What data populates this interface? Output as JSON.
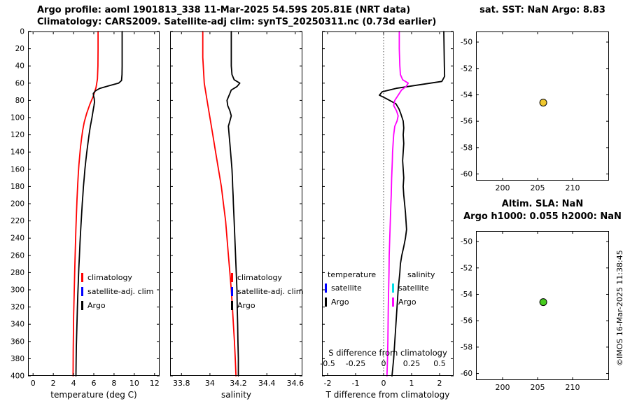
{
  "header": {
    "line1": "Argo profile: aoml 1901813_338 11-Mar-2025 54.59S 205.81E (NRT data)",
    "line2": "Climatology: CARS2009. Satellite-adj clim: synTS_20250311.nc (0.73d earlier)"
  },
  "watermark": "©IMOS 16-Mar-2025 11:38:45",
  "chart_data": [
    {
      "id": "temperature-profile",
      "type": "line",
      "xlabel": "temperature (deg C)",
      "xlim": [
        -0.5,
        12.5
      ],
      "xticks": [
        0,
        2,
        4,
        6,
        8,
        10,
        12
      ],
      "ylim": [
        0,
        400
      ],
      "yticks": [
        0,
        20,
        40,
        60,
        80,
        100,
        120,
        140,
        160,
        180,
        200,
        220,
        240,
        260,
        280,
        300,
        320,
        340,
        360,
        380,
        400
      ],
      "ytick_labels": true,
      "legend": [
        {
          "label": "climatology",
          "color": "#ff0000"
        },
        {
          "label": "satellite-adj. clim",
          "color": "#0000ff"
        },
        {
          "label": "Argo",
          "color": "#000000"
        }
      ],
      "series": [
        {
          "name": "climatology",
          "color": "#ff0000",
          "points": [
            [
              0,
              6.42
            ],
            [
              20,
              6.42
            ],
            [
              40,
              6.41
            ],
            [
              55,
              6.36
            ],
            [
              65,
              6.22
            ],
            [
              75,
              5.95
            ],
            [
              85,
              5.6
            ],
            [
              95,
              5.3
            ],
            [
              105,
              5.06
            ],
            [
              115,
              4.9
            ],
            [
              125,
              4.78
            ],
            [
              135,
              4.68
            ],
            [
              145,
              4.6
            ],
            [
              155,
              4.53
            ],
            [
              165,
              4.47
            ],
            [
              175,
              4.42
            ],
            [
              185,
              4.38
            ],
            [
              195,
              4.34
            ],
            [
              210,
              4.29
            ],
            [
              230,
              4.23
            ],
            [
              250,
              4.18
            ],
            [
              270,
              4.13
            ],
            [
              290,
              4.09
            ],
            [
              310,
              4.05
            ],
            [
              330,
              4.01
            ],
            [
              350,
              3.99
            ],
            [
              370,
              3.97
            ],
            [
              400,
              3.95
            ]
          ]
        },
        {
          "name": "Argo",
          "color": "#000000",
          "points": [
            [
              0,
              8.8
            ],
            [
              20,
              8.8
            ],
            [
              40,
              8.8
            ],
            [
              50,
              8.79
            ],
            [
              57,
              8.74
            ],
            [
              60,
              8.45
            ],
            [
              63,
              7.5
            ],
            [
              66,
              6.6
            ],
            [
              69,
              6.15
            ],
            [
              72,
              5.95
            ],
            [
              75,
              5.98
            ],
            [
              78,
              6.04
            ],
            [
              82,
              6.07
            ],
            [
              86,
              6.02
            ],
            [
              90,
              5.96
            ],
            [
              95,
              5.89
            ],
            [
              100,
              5.82
            ],
            [
              110,
              5.66
            ],
            [
              120,
              5.53
            ],
            [
              130,
              5.42
            ],
            [
              140,
              5.31
            ],
            [
              150,
              5.21
            ],
            [
              160,
              5.12
            ],
            [
              170,
              5.05
            ],
            [
              180,
              4.98
            ],
            [
              190,
              4.92
            ],
            [
              200,
              4.86
            ],
            [
              215,
              4.78
            ],
            [
              230,
              4.71
            ],
            [
              245,
              4.64
            ],
            [
              260,
              4.58
            ],
            [
              275,
              4.52
            ],
            [
              290,
              4.47
            ],
            [
              305,
              4.42
            ],
            [
              320,
              4.38
            ],
            [
              335,
              4.35
            ],
            [
              350,
              4.31
            ],
            [
              365,
              4.28
            ],
            [
              380,
              4.26
            ],
            [
              400,
              4.24
            ]
          ]
        }
      ]
    },
    {
      "id": "salinity-profile",
      "type": "line",
      "xlabel": "salinity",
      "xlim": [
        33.72,
        34.65
      ],
      "xticks": [
        33.8,
        34,
        34.2,
        34.4,
        34.6
      ],
      "ylim": [
        0,
        400
      ],
      "yticks": [
        0,
        20,
        40,
        60,
        80,
        100,
        120,
        140,
        160,
        180,
        200,
        220,
        240,
        260,
        280,
        300,
        320,
        340,
        360,
        380,
        400
      ],
      "ytick_labels": false,
      "legend": [
        {
          "label": "climatology",
          "color": "#ff0000"
        },
        {
          "label": "satellite-adj. clim",
          "color": "#0000ff"
        },
        {
          "label": "Argo",
          "color": "#000000"
        }
      ],
      "series": [
        {
          "name": "climatology",
          "color": "#ff0000",
          "points": [
            [
              0,
              33.95
            ],
            [
              30,
              33.95
            ],
            [
              60,
              33.96
            ],
            [
              80,
              33.98
            ],
            [
              100,
              34.0
            ],
            [
              120,
              34.02
            ],
            [
              140,
              34.04
            ],
            [
              160,
              34.06
            ],
            [
              180,
              34.08
            ],
            [
              200,
              34.095
            ],
            [
              220,
              34.11
            ],
            [
              240,
              34.12
            ],
            [
              260,
              34.13
            ],
            [
              280,
              34.14
            ],
            [
              300,
              34.15
            ],
            [
              320,
              34.158
            ],
            [
              340,
              34.165
            ],
            [
              360,
              34.172
            ],
            [
              380,
              34.178
            ],
            [
              400,
              34.183
            ]
          ]
        },
        {
          "name": "Argo",
          "color": "#000000",
          "points": [
            [
              0,
              34.15
            ],
            [
              20,
              34.15
            ],
            [
              40,
              34.15
            ],
            [
              50,
              34.155
            ],
            [
              56,
              34.17
            ],
            [
              60,
              34.21
            ],
            [
              64,
              34.19
            ],
            [
              68,
              34.15
            ],
            [
              72,
              34.14
            ],
            [
              76,
              34.13
            ],
            [
              80,
              34.12
            ],
            [
              86,
              34.125
            ],
            [
              92,
              34.14
            ],
            [
              98,
              34.15
            ],
            [
              104,
              34.14
            ],
            [
              110,
              34.13
            ],
            [
              120,
              34.135
            ],
            [
              130,
              34.14
            ],
            [
              140,
              34.145
            ],
            [
              150,
              34.15
            ],
            [
              160,
              34.155
            ],
            [
              170,
              34.158
            ],
            [
              180,
              34.16
            ],
            [
              190,
              34.163
            ],
            [
              200,
              34.165
            ],
            [
              220,
              34.17
            ],
            [
              240,
              34.175
            ],
            [
              260,
              34.18
            ],
            [
              280,
              34.185
            ],
            [
              300,
              34.19
            ],
            [
              320,
              34.192
            ],
            [
              340,
              34.195
            ],
            [
              360,
              34.197
            ],
            [
              380,
              34.2
            ],
            [
              400,
              34.2
            ]
          ]
        }
      ]
    },
    {
      "id": "difference-profile",
      "type": "line",
      "xlabel": "T difference from climatology",
      "xlim": [
        -2.2,
        2.5
      ],
      "xticks": [
        -2,
        -1,
        0,
        1,
        2
      ],
      "ylim": [
        0,
        400
      ],
      "yticks": [
        0,
        20,
        40,
        60,
        80,
        100,
        120,
        140,
        160,
        180,
        200,
        220,
        240,
        260,
        280,
        300,
        320,
        340,
        360,
        380,
        400
      ],
      "ytick_labels": false,
      "zero_line": true,
      "s_axis": {
        "label": "S difference from climatology",
        "ticks": [
          -0.5,
          -0.25,
          0,
          0.25,
          0.5
        ],
        "scale": 4
      },
      "legend_columns": [
        {
          "header": "temperature",
          "entries": [
            {
              "label": "satellite",
              "color": "#0000ff"
            },
            {
              "label": "Argo",
              "color": "#000000"
            }
          ]
        },
        {
          "header": "salinity",
          "entries": [
            {
              "label": "satellite",
              "color": "#00dfe8"
            },
            {
              "label": "Argo",
              "color": "#ff00ff"
            }
          ]
        }
      ],
      "series": [
        {
          "name": "T-diff-Argo-minus-climatology",
          "color": "#000000",
          "points": [
            [
              0,
              2.15
            ],
            [
              20,
              2.16
            ],
            [
              40,
              2.17
            ],
            [
              52,
              2.18
            ],
            [
              58,
              2.08
            ],
            [
              62,
              1.25
            ],
            [
              66,
              0.45
            ],
            [
              70,
              -0.05
            ],
            [
              74,
              -0.15
            ],
            [
              78,
              0.1
            ],
            [
              84,
              0.44
            ],
            [
              90,
              0.55
            ],
            [
              96,
              0.62
            ],
            [
              104,
              0.7
            ],
            [
              112,
              0.72
            ],
            [
              120,
              0.7
            ],
            [
              130,
              0.72
            ],
            [
              140,
              0.7
            ],
            [
              150,
              0.68
            ],
            [
              160,
              0.7
            ],
            [
              170,
              0.72
            ],
            [
              180,
              0.7
            ],
            [
              190,
              0.72
            ],
            [
              200,
              0.75
            ],
            [
              210,
              0.78
            ],
            [
              220,
              0.8
            ],
            [
              230,
              0.82
            ],
            [
              240,
              0.78
            ],
            [
              250,
              0.72
            ],
            [
              260,
              0.65
            ],
            [
              270,
              0.6
            ],
            [
              280,
              0.58
            ],
            [
              290,
              0.55
            ],
            [
              300,
              0.52
            ],
            [
              310,
              0.5
            ],
            [
              320,
              0.48
            ],
            [
              330,
              0.46
            ],
            [
              340,
              0.44
            ],
            [
              350,
              0.42
            ],
            [
              360,
              0.4
            ],
            [
              370,
              0.38
            ],
            [
              380,
              0.36
            ],
            [
              390,
              0.33
            ],
            [
              400,
              0.3
            ]
          ]
        },
        {
          "name": "S-diff-Argo-minus-climatology",
          "color": "#ff00ff",
          "scale": 4,
          "points": [
            [
              0,
              0.14
            ],
            [
              20,
              0.14
            ],
            [
              40,
              0.145
            ],
            [
              50,
              0.15
            ],
            [
              56,
              0.17
            ],
            [
              60,
              0.22
            ],
            [
              64,
              0.2
            ],
            [
              68,
              0.16
            ],
            [
              72,
              0.14
            ],
            [
              76,
              0.12
            ],
            [
              80,
              0.1
            ],
            [
              86,
              0.09
            ],
            [
              92,
              0.115
            ],
            [
              98,
              0.13
            ],
            [
              104,
              0.12
            ],
            [
              110,
              0.1
            ],
            [
              120,
              0.09
            ],
            [
              130,
              0.085
            ],
            [
              140,
              0.08
            ],
            [
              150,
              0.078
            ],
            [
              160,
              0.075
            ],
            [
              170,
              0.072
            ],
            [
              180,
              0.07
            ],
            [
              190,
              0.068
            ],
            [
              200,
              0.065
            ],
            [
              220,
              0.06
            ],
            [
              240,
              0.055
            ],
            [
              260,
              0.05
            ],
            [
              280,
              0.048
            ],
            [
              300,
              0.045
            ],
            [
              320,
              0.042
            ],
            [
              340,
              0.04
            ],
            [
              360,
              0.038
            ],
            [
              380,
              0.035
            ],
            [
              400,
              0.03
            ]
          ]
        }
      ]
    },
    {
      "id": "sst-map",
      "type": "scatter",
      "title": "sat. SST: NaN Argo: 8.83",
      "xlim": [
        196.2,
        215.2
      ],
      "xticks": [
        200,
        205,
        210
      ],
      "ylim": [
        -49.2,
        -60.5
      ],
      "yticks": [
        -50,
        -52,
        -54,
        -56,
        -58,
        -60
      ],
      "ytick_labels": true,
      "points": [
        {
          "x": 205.81,
          "y": -54.59,
          "color": "#efc72e"
        }
      ]
    },
    {
      "id": "sla-map",
      "type": "scatter",
      "title_lines": [
        "Altim. SLA: NaN",
        "Argo h1000: 0.055 h2000: NaN"
      ],
      "xlim": [
        196.2,
        215.2
      ],
      "xticks": [
        200,
        205,
        210
      ],
      "ylim": [
        -49.2,
        -60.5
      ],
      "yticks": [
        -50,
        -52,
        -54,
        -56,
        -58,
        -60
      ],
      "ytick_labels": true,
      "points": [
        {
          "x": 205.81,
          "y": -54.59,
          "color": "#46cc1e"
        }
      ]
    }
  ]
}
